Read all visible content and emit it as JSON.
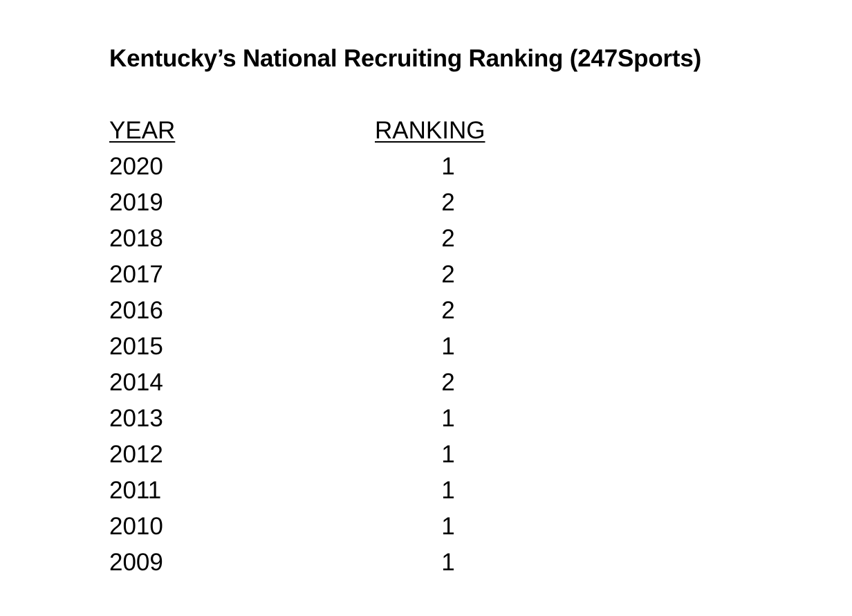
{
  "document": {
    "title": "Kentucky’s National Recruiting Ranking (247Sports)",
    "headers": {
      "year": "YEAR",
      "ranking": "RANKING"
    },
    "rows": [
      {
        "year": "2020",
        "ranking": "1"
      },
      {
        "year": "2019",
        "ranking": "2"
      },
      {
        "year": "2018",
        "ranking": "2"
      },
      {
        "year": "2017",
        "ranking": "2"
      },
      {
        "year": "2016",
        "ranking": "2"
      },
      {
        "year": "2015",
        "ranking": "1"
      },
      {
        "year": "2014",
        "ranking": "2"
      },
      {
        "year": "2013",
        "ranking": "1"
      },
      {
        "year": "2012",
        "ranking": "1"
      },
      {
        "year": "2011",
        "ranking": "1"
      },
      {
        "year": "2010",
        "ranking": "1"
      },
      {
        "year": "2009",
        "ranking": "1"
      }
    ]
  }
}
